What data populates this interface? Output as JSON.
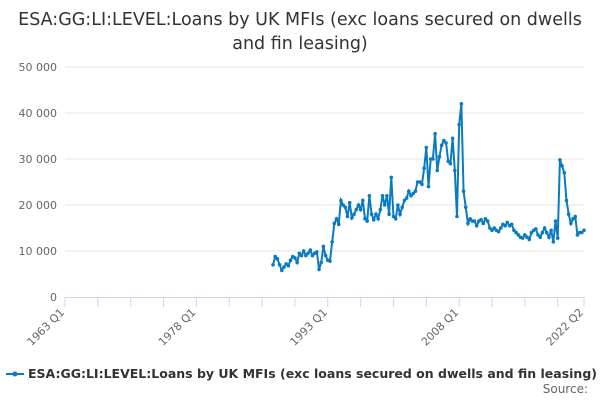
{
  "chart_data": {
    "type": "line",
    "title": "ESA:GG:LI:LEVEL:Loans by UK MFIs (exc loans secured on dwells and fin leasing)",
    "xlabel": "",
    "ylabel": "",
    "ylim": [
      0,
      50000
    ],
    "yticks": [
      "0",
      "10 000",
      "20 000",
      "30 000",
      "40 000",
      "50 000"
    ],
    "xticks": [
      "1963 Q1",
      "1978 Q1",
      "1993 Q1",
      "2008 Q1",
      "2022 Q2"
    ],
    "x_range": [
      "1963 Q1",
      "2022 Q2"
    ],
    "grid": "horizontal",
    "legend": "bottom",
    "color": "#0a7bc2",
    "series": [
      {
        "name": "ESA:GG:LI:LEVEL:Loans by UK MFIs (exc loans secured on dwells and fin leasing)",
        "x_first": "1986 Q4",
        "x_last": "2022 Q2",
        "frequency": "quarterly",
        "values": [
          7000,
          8800,
          8300,
          7000,
          5800,
          6500,
          7200,
          6800,
          8000,
          8800,
          8500,
          7500,
          9500,
          9000,
          10000,
          9000,
          9500,
          10200,
          9000,
          9500,
          9800,
          6000,
          7500,
          11000,
          9000,
          8000,
          7800,
          12000,
          16000,
          17000,
          15800,
          21000,
          20000,
          19500,
          17500,
          20500,
          17200,
          18000,
          19000,
          20000,
          19000,
          21000,
          17000,
          16500,
          22000,
          18000,
          16800,
          18000,
          17000,
          19000,
          22000,
          20000,
          22000,
          18000,
          26000,
          17500,
          17000,
          20000,
          18000,
          19500,
          21000,
          21500,
          23000,
          22000,
          22500,
          23000,
          25000,
          25000,
          24500,
          28000,
          32500,
          24000,
          30000,
          30000,
          35500,
          27500,
          30500,
          33000,
          34000,
          33500,
          29500,
          29000,
          34500,
          27500,
          17500,
          37500,
          42000,
          23000,
          19500,
          16000,
          17000,
          16500,
          16500,
          15500,
          16500,
          16800,
          16000,
          17000,
          16500,
          15000,
          14500,
          15000,
          14500,
          14200,
          15000,
          15800,
          15500,
          16200,
          15500,
          15800,
          14500,
          14000,
          13500,
          13000,
          12800,
          13500,
          13000,
          12500,
          14000,
          14500,
          14800,
          13500,
          13000,
          14000,
          15000,
          14000,
          13000,
          14500,
          12000,
          16500,
          12800,
          29800,
          28500,
          27000,
          21000,
          18000,
          16000,
          17000,
          17500,
          13500,
          14000,
          14000,
          14500
        ]
      }
    ]
  },
  "source_label": "Source:"
}
